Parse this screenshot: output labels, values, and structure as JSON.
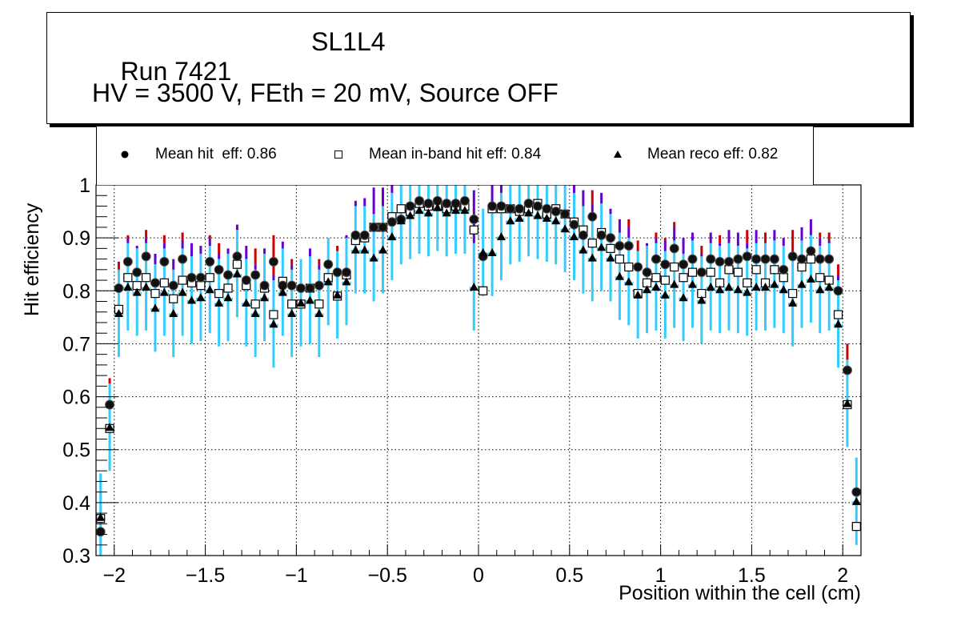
{
  "title": {
    "run": "Run 7421",
    "detector": "SL1L4",
    "conditions": "HV = 3500 V, FEth = 20 mV, Source OFF"
  },
  "legend": {
    "entries": [
      {
        "marker": "filled-circle",
        "label": "Mean hit  eff: 0.86"
      },
      {
        "marker": "open-square",
        "label": "Mean in-band hit eff: 0.84"
      },
      {
        "marker": "filled-triangle",
        "label": "Mean reco eff: 0.82"
      }
    ]
  },
  "colors": {
    "err_hit": "#cc0000",
    "err_inband": "#6600cc",
    "err_reco": "#33ccff",
    "marker": "#000000"
  },
  "chart_data": {
    "type": "scatter",
    "title": "Run 7421 SL1L4 — HV = 3500 V, FEth = 20 mV, Source OFF",
    "xlabel": "Position within the cell (cm)",
    "ylabel": "Hit efficiency",
    "xlim": [
      -2.1,
      2.1
    ],
    "ylim": [
      0.3,
      1.0
    ],
    "xticks": [
      -2,
      -1.5,
      -1,
      -0.5,
      0,
      0.5,
      1,
      1.5,
      2
    ],
    "xtick_labels": [
      "−2",
      "−1.5",
      "−1",
      "−0.5",
      "0",
      "0.5",
      "1",
      "1.5",
      "2"
    ],
    "yticks": [
      0.3,
      0.4,
      0.5,
      0.6,
      0.7,
      0.8,
      0.9,
      1.0
    ],
    "ytick_labels": [
      "0.3",
      "0.4",
      "0.5",
      "0.6",
      "0.7",
      "0.8",
      "0.9",
      "1"
    ],
    "grid": true,
    "legend_position": "top",
    "x": [
      -2.075,
      -2.025,
      -1.975,
      -1.925,
      -1.875,
      -1.825,
      -1.775,
      -1.725,
      -1.675,
      -1.625,
      -1.575,
      -1.525,
      -1.475,
      -1.425,
      -1.375,
      -1.325,
      -1.275,
      -1.225,
      -1.175,
      -1.125,
      -1.075,
      -1.025,
      -0.975,
      -0.925,
      -0.875,
      -0.825,
      -0.775,
      -0.725,
      -0.675,
      -0.625,
      -0.575,
      -0.525,
      -0.475,
      -0.425,
      -0.375,
      -0.325,
      -0.275,
      -0.225,
      -0.175,
      -0.125,
      -0.075,
      -0.025,
      0.025,
      0.075,
      0.125,
      0.175,
      0.225,
      0.275,
      0.325,
      0.375,
      0.425,
      0.475,
      0.525,
      0.575,
      0.625,
      0.675,
      0.725,
      0.775,
      0.825,
      0.875,
      0.925,
      0.975,
      1.025,
      1.075,
      1.125,
      1.175,
      1.225,
      1.275,
      1.325,
      1.375,
      1.425,
      1.475,
      1.525,
      1.575,
      1.625,
      1.675,
      1.725,
      1.775,
      1.825,
      1.875,
      1.925,
      1.975,
      2.025,
      2.075
    ],
    "series": [
      {
        "name": "Mean hit  eff: 0.86",
        "marker": "filled-circle",
        "values": [
          0.345,
          0.585,
          0.805,
          0.855,
          0.835,
          0.865,
          0.815,
          0.855,
          0.81,
          0.86,
          0.825,
          0.825,
          0.855,
          0.84,
          0.83,
          0.865,
          0.82,
          0.83,
          0.81,
          0.855,
          0.81,
          0.81,
          0.805,
          0.805,
          0.81,
          0.85,
          0.835,
          0.835,
          0.905,
          0.905,
          0.92,
          0.92,
          0.93,
          0.935,
          0.96,
          0.97,
          0.965,
          0.97,
          0.965,
          0.965,
          0.97,
          0.935,
          0.865,
          0.96,
          0.96,
          0.955,
          0.955,
          0.965,
          0.96,
          0.955,
          0.95,
          0.945,
          0.925,
          0.905,
          0.94,
          0.905,
          0.9,
          0.885,
          0.885,
          0.845,
          0.835,
          0.86,
          0.85,
          0.88,
          0.85,
          0.86,
          0.835,
          0.86,
          0.855,
          0.855,
          0.86,
          0.865,
          0.86,
          0.86,
          0.86,
          0.84,
          0.865,
          0.86,
          0.875,
          0.86,
          0.86,
          0.8,
          0.65,
          0.42
        ]
      },
      {
        "name": "Mean in-band hit eff: 0.84",
        "marker": "open-square",
        "values": [
          0.37,
          0.54,
          0.765,
          0.825,
          0.81,
          0.825,
          0.795,
          0.815,
          0.785,
          0.82,
          0.815,
          0.81,
          0.825,
          0.795,
          0.805,
          0.85,
          0.81,
          0.775,
          0.805,
          0.755,
          0.818,
          0.775,
          0.775,
          0.805,
          0.775,
          0.825,
          0.79,
          0.83,
          0.895,
          0.9,
          0.92,
          0.92,
          0.94,
          0.955,
          0.95,
          0.965,
          0.96,
          0.96,
          0.955,
          0.96,
          0.96,
          0.915,
          0.8,
          0.955,
          0.955,
          0.955,
          0.95,
          0.955,
          0.965,
          0.945,
          0.955,
          0.945,
          0.93,
          0.915,
          0.89,
          0.91,
          0.88,
          0.86,
          0.845,
          0.795,
          0.815,
          0.825,
          0.82,
          0.845,
          0.825,
          0.835,
          0.795,
          0.835,
          0.815,
          0.84,
          0.835,
          0.815,
          0.84,
          0.815,
          0.84,
          0.825,
          0.795,
          0.845,
          0.86,
          0.825,
          0.82,
          0.755,
          0.585,
          0.355
        ]
      },
      {
        "name": "Mean reco eff: 0.82",
        "marker": "filled-triangle",
        "values": [
          0.37,
          0.54,
          0.755,
          0.805,
          0.795,
          0.805,
          0.765,
          0.795,
          0.755,
          0.795,
          0.78,
          0.785,
          0.8,
          0.775,
          0.785,
          0.83,
          0.775,
          0.755,
          0.785,
          0.735,
          0.795,
          0.755,
          0.775,
          0.78,
          0.755,
          0.815,
          0.79,
          0.815,
          0.875,
          0.875,
          0.86,
          0.875,
          0.9,
          0.93,
          0.94,
          0.95,
          0.945,
          0.955,
          0.945,
          0.95,
          0.95,
          0.805,
          0.87,
          0.87,
          0.9,
          0.93,
          0.935,
          0.945,
          0.94,
          0.935,
          0.93,
          0.915,
          0.9,
          0.875,
          0.86,
          0.88,
          0.86,
          0.825,
          0.815,
          0.79,
          0.8,
          0.805,
          0.79,
          0.81,
          0.785,
          0.81,
          0.78,
          0.805,
          0.8,
          0.805,
          0.8,
          0.795,
          0.805,
          0.805,
          0.81,
          0.8,
          0.775,
          0.81,
          0.82,
          0.8,
          0.805,
          0.735,
          0.585,
          0.4
        ]
      }
    ],
    "error_bars": {
      "hit": {
        "up": 0.05,
        "down": 0.04
      },
      "inband": {
        "up": 0.075,
        "down": 0.055
      },
      "reco": {
        "up": 0.085,
        "down": 0.08
      }
    }
  },
  "axis": {
    "xlabel": "Position within the cell (cm)",
    "ylabel": "Hit efficiency"
  }
}
